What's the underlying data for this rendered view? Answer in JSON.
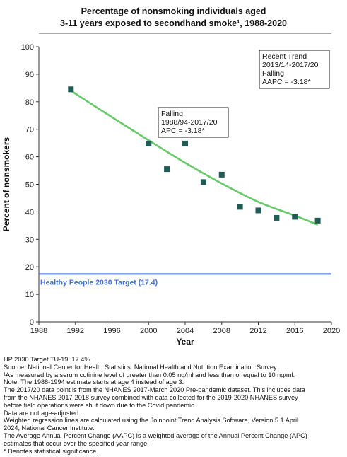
{
  "title_lines": [
    "Percentage of nonsmoking individuals aged",
    "3-11 years exposed to secondhand smoke¹, 1988-2020"
  ],
  "chart_data": {
    "type": "scatter",
    "xlabel": "Year",
    "ylabel": "Percent of nonsmokers",
    "xlim": [
      1988,
      2020
    ],
    "ylim": [
      0,
      100
    ],
    "x_ticks": [
      "1988",
      "1992",
      "1996",
      "2000",
      "2004",
      "2008",
      "2012",
      "2016",
      "2020"
    ],
    "y_ticks": [
      "0",
      "10",
      "20",
      "30",
      "40",
      "50",
      "60",
      "70",
      "80",
      "90",
      "100"
    ],
    "grid": false,
    "points": [
      {
        "x": 1991.5,
        "y": 84.5
      },
      {
        "x": 2000.0,
        "y": 64.8
      },
      {
        "x": 2002.0,
        "y": 55.5
      },
      {
        "x": 2004.0,
        "y": 64.8
      },
      {
        "x": 2006.0,
        "y": 50.8
      },
      {
        "x": 2008.0,
        "y": 53.5
      },
      {
        "x": 2010.0,
        "y": 41.8
      },
      {
        "x": 2012.0,
        "y": 40.5
      },
      {
        "x": 2014.0,
        "y": 37.8
      },
      {
        "x": 2016.0,
        "y": 38.2
      },
      {
        "x": 2018.5,
        "y": 36.8
      }
    ],
    "trend_line": [
      {
        "x": 1991.5,
        "y": 84.0
      },
      {
        "x": 1995.0,
        "y": 76.5
      },
      {
        "x": 2000.0,
        "y": 66.0
      },
      {
        "x": 2004.0,
        "y": 57.8
      },
      {
        "x": 2008.0,
        "y": 50.3
      },
      {
        "x": 2012.0,
        "y": 43.6
      },
      {
        "x": 2016.0,
        "y": 38.6
      },
      {
        "x": 2018.5,
        "y": 35.3
      }
    ],
    "target": {
      "value": 17.4,
      "label": "Healthy People 2030 Target (17.4)"
    },
    "annotations": [
      {
        "lines": [
          "Falling",
          "1988/94-2017/20",
          "APC = -3.18*"
        ]
      },
      {
        "lines": [
          "Recent Trend",
          "2013/14-2017/20",
          "Falling",
          "AAPC = -3.18*"
        ]
      }
    ],
    "colors": {
      "points": "#1e5c55",
      "trend": "#66c96a",
      "target": "#3e6fe0",
      "target_text": "#3e6fe0",
      "axis": "#333333"
    }
  },
  "footnotes": [
    "HP 2030 Target TU-19: 17.4%.",
    "Source: National Center for Health Statistics. National Health and Nutrition Examination Survey.",
    "¹As measured by a serum cotinine level of greater than 0.05 ng/ml and less than or equal to 10 ng/ml.",
    "Note: The 1988-1994 estimate starts at age 4 instead of age 3.",
    "The 2017/20 data point is from the NHANES 2017-March 2020 Pre-pandemic dataset. This includes data",
    "from the NHANES 2017-2018 survey combined with data collected for the 2019-2020 NHANES survey",
    "before field operations were shut down due to the Covid pandemic.",
    "Data are not age-adjusted.",
    "Weighted regression lines are calculated using the Joinpoint Trend Analysis Software, Version 5.1 April",
    "2024, National Cancer Institute.",
    "The Average Annual Percent Change (AAPC) is a weighted average of the Annual Percent Change (APC)",
    "estimates that occur over the specified year range.",
    "* Denotes statistical significance."
  ]
}
